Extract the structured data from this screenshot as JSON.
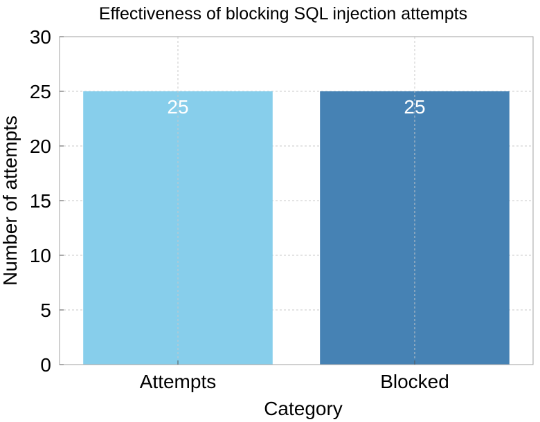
{
  "chart_data": {
    "type": "bar",
    "title": "Effectiveness of blocking SQL injection attempts",
    "xlabel": "Category",
    "ylabel": "Number of attempts",
    "categories": [
      "Attempts",
      "Blocked"
    ],
    "values": [
      25,
      25
    ],
    "data_labels": [
      "25",
      "25"
    ],
    "colors": [
      "#87CEEB",
      "#4682B4"
    ],
    "ylim": [
      0,
      30
    ],
    "yticks": [
      0,
      5,
      10,
      15,
      20,
      25,
      30
    ],
    "ytick_labels": [
      "0",
      "5",
      "10",
      "15",
      "20",
      "25",
      "30"
    ],
    "grid": true,
    "legend": "none"
  }
}
